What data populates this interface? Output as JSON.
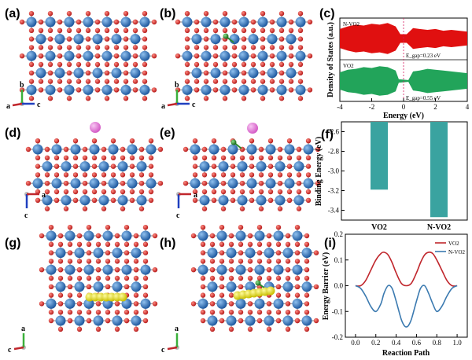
{
  "panels": {
    "a": "(a)",
    "b": "(b)",
    "c": "(c)",
    "d": "(d)",
    "e": "(e)",
    "f": "(f)",
    "g": "(g)",
    "h": "(h)",
    "i": "(i)"
  },
  "axes_triads": {
    "a": {
      "up": "b",
      "left": "a",
      "right": "c"
    },
    "b": {
      "up": "b",
      "left": "a",
      "right": "c"
    },
    "d": {
      "right": "a",
      "down": "c"
    },
    "e": {
      "right": "a",
      "down": "c"
    },
    "g": {
      "up": "a",
      "left": "c"
    },
    "h": {
      "up": "a",
      "left": "c"
    }
  },
  "colors": {
    "vanadium": "#2f6fb8",
    "oxygen": "#d8251c",
    "nitrogen": "#2a8a2a",
    "lithium_ion": "#e57fd8",
    "sulfur": "#e8e21a",
    "dos_nvo2": "#e01010",
    "dos_vo2": "#22a45a",
    "bar": "#3aa3a0",
    "line_vo2": "#c0262c",
    "line_nvo2": "#3b7ab0"
  },
  "chart_data": [
    {
      "id": "c",
      "type": "area",
      "title": "",
      "xlabel": "Energy (eV)",
      "ylabel": "Density of States (a.u.)",
      "xlim": [
        -4,
        4
      ],
      "xticks": [
        "-4",
        "-2",
        "0",
        "2",
        "4"
      ],
      "fermi_level": 0,
      "series": [
        {
          "name": "N-VO2",
          "gap_label": "E_gap=0.23 eV",
          "x": [
            -4,
            -3.5,
            -3,
            -2.5,
            -2,
            -1.5,
            -1,
            -0.5,
            -0.2,
            0.2,
            0.6,
            1,
            1.5,
            2,
            2.5,
            3,
            3.5,
            4
          ],
          "y": [
            0.55,
            0.7,
            0.8,
            0.75,
            0.85,
            0.8,
            0.9,
            0.7,
            0.25,
            0.25,
            0.6,
            0.55,
            0.5,
            0.55,
            0.45,
            0.5,
            0.45,
            0.4
          ]
        },
        {
          "name": "VO2",
          "gap_label": "E_gap=0.55 eV",
          "x": [
            -4,
            -3.5,
            -3,
            -2.5,
            -2,
            -1.5,
            -1,
            -0.5,
            -0.3,
            0.3,
            0.6,
            1,
            1.5,
            2,
            2.5,
            3,
            3.5,
            4
          ],
          "y": [
            0.5,
            0.65,
            0.7,
            0.8,
            0.75,
            0.85,
            0.8,
            0.6,
            0.1,
            0.05,
            0.55,
            0.6,
            0.7,
            0.65,
            0.6,
            0.55,
            0.5,
            0.45
          ]
        }
      ]
    },
    {
      "id": "f",
      "type": "bar",
      "title": "",
      "ylabel": "Binding Energy (eV)",
      "ylim": [
        -3.5,
        -2.5
      ],
      "yticks": [
        "-2.6",
        "-2.8",
        "-3.0",
        "-3.2",
        "-3.4"
      ],
      "categories": [
        "VO2",
        "N-VO2"
      ],
      "values": [
        -3.19,
        -3.47
      ]
    },
    {
      "id": "i",
      "type": "line",
      "title": "",
      "xlabel": "Reaction Path",
      "ylabel": "Energy Barrier (eV)",
      "xlim": [
        -0.1,
        1.1
      ],
      "ylim": [
        -0.2,
        0.2
      ],
      "xticks": [
        "0.0",
        "0.2",
        "0.4",
        "0.6",
        "0.8",
        "1.0"
      ],
      "yticks": [
        "0.2",
        "0.1",
        "0.0",
        "-0.1",
        "-0.2"
      ],
      "legend": "top-right",
      "series": [
        {
          "name": "VO2",
          "x": [
            0.0,
            0.05,
            0.1,
            0.15,
            0.2,
            0.25,
            0.28,
            0.32,
            0.36,
            0.4,
            0.45,
            0.5,
            0.55,
            0.6,
            0.64,
            0.68,
            0.72,
            0.76,
            0.8,
            0.85,
            0.9,
            0.95,
            1.0
          ],
          "y": [
            0.0,
            0.0,
            0.02,
            0.06,
            0.1,
            0.125,
            0.13,
            0.12,
            0.09,
            0.05,
            0.01,
            0.0,
            0.01,
            0.05,
            0.09,
            0.12,
            0.13,
            0.125,
            0.1,
            0.06,
            0.02,
            0.0,
            0.0
          ]
        },
        {
          "name": "N-VO2",
          "x": [
            0.0,
            0.05,
            0.1,
            0.15,
            0.2,
            0.25,
            0.28,
            0.32,
            0.36,
            0.4,
            0.45,
            0.48,
            0.5,
            0.52,
            0.55,
            0.6,
            0.64,
            0.68,
            0.72,
            0.76,
            0.8,
            0.85,
            0.9,
            0.95,
            1.0
          ],
          "y": [
            0.0,
            -0.01,
            -0.04,
            -0.08,
            -0.1,
            -0.07,
            -0.03,
            0.0,
            -0.01,
            -0.06,
            -0.13,
            -0.155,
            -0.16,
            -0.155,
            -0.13,
            -0.06,
            -0.01,
            0.0,
            -0.03,
            -0.07,
            -0.1,
            -0.08,
            -0.04,
            -0.01,
            0.0
          ]
        }
      ]
    }
  ]
}
